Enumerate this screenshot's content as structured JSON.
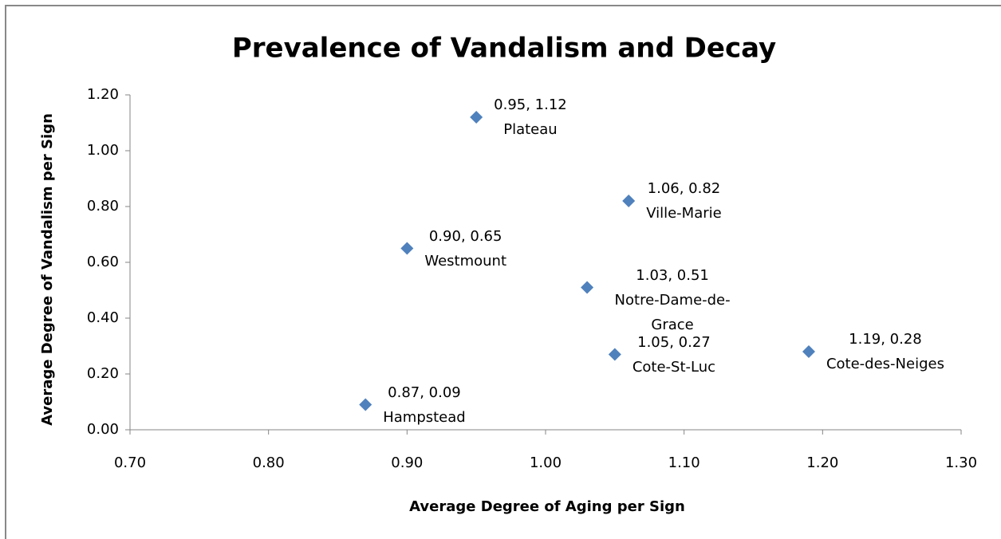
{
  "chart_data": {
    "type": "scatter",
    "title": "Prevalence of Vandalism and Decay",
    "x_label": "Average  Degree of Aging per Sign",
    "y_label": "Average Degree of Vandalism per Sign",
    "series": [
      {
        "color": "#4f81bd",
        "x": [
          0.95,
          1.06,
          0.9,
          1.03,
          1.05,
          1.19,
          0.87
        ],
        "values": [
          1.12,
          0.82,
          0.65,
          0.51,
          0.27,
          0.28,
          0.09
        ],
        "value_labels": [
          "0.95, 1.12",
          "1.06, 0.82",
          "0.90, 0.65",
          "1.03, 0.51",
          "1.05, 0.27",
          "1.19, 0.28",
          "0.87, 0.09"
        ],
        "point_names": [
          "Plateau",
          "Ville-Marie",
          "Westmount",
          "Notre-Dame-de-Grace",
          "Cote-St-Luc",
          "Cote-des-Neiges",
          "Hampstead"
        ]
      }
    ],
    "xlim": [
      0.7,
      1.3
    ],
    "xticks": [
      {
        "value": 0.7,
        "label": "0.70"
      },
      {
        "value": 0.8,
        "label": "0.80"
      },
      {
        "value": 0.9,
        "label": "0.90"
      },
      {
        "value": 1.0,
        "label": "1.00"
      },
      {
        "value": 1.1,
        "label": "1.10"
      },
      {
        "value": 1.2,
        "label": "1.20"
      },
      {
        "value": 1.3,
        "label": "1.30"
      }
    ],
    "ylim": [
      0,
      1.2
    ],
    "yticks": [
      {
        "value": 0,
        "label": "0.00"
      },
      {
        "value": 0.2,
        "label": "0.20"
      },
      {
        "value": 0.4,
        "label": "0.40"
      },
      {
        "value": 0.6,
        "label": "0.60"
      },
      {
        "value": 0.8,
        "label": "0.80"
      },
      {
        "value": 1.0,
        "label": "1.00"
      },
      {
        "value": 1.2,
        "label": "1.20"
      }
    ]
  }
}
